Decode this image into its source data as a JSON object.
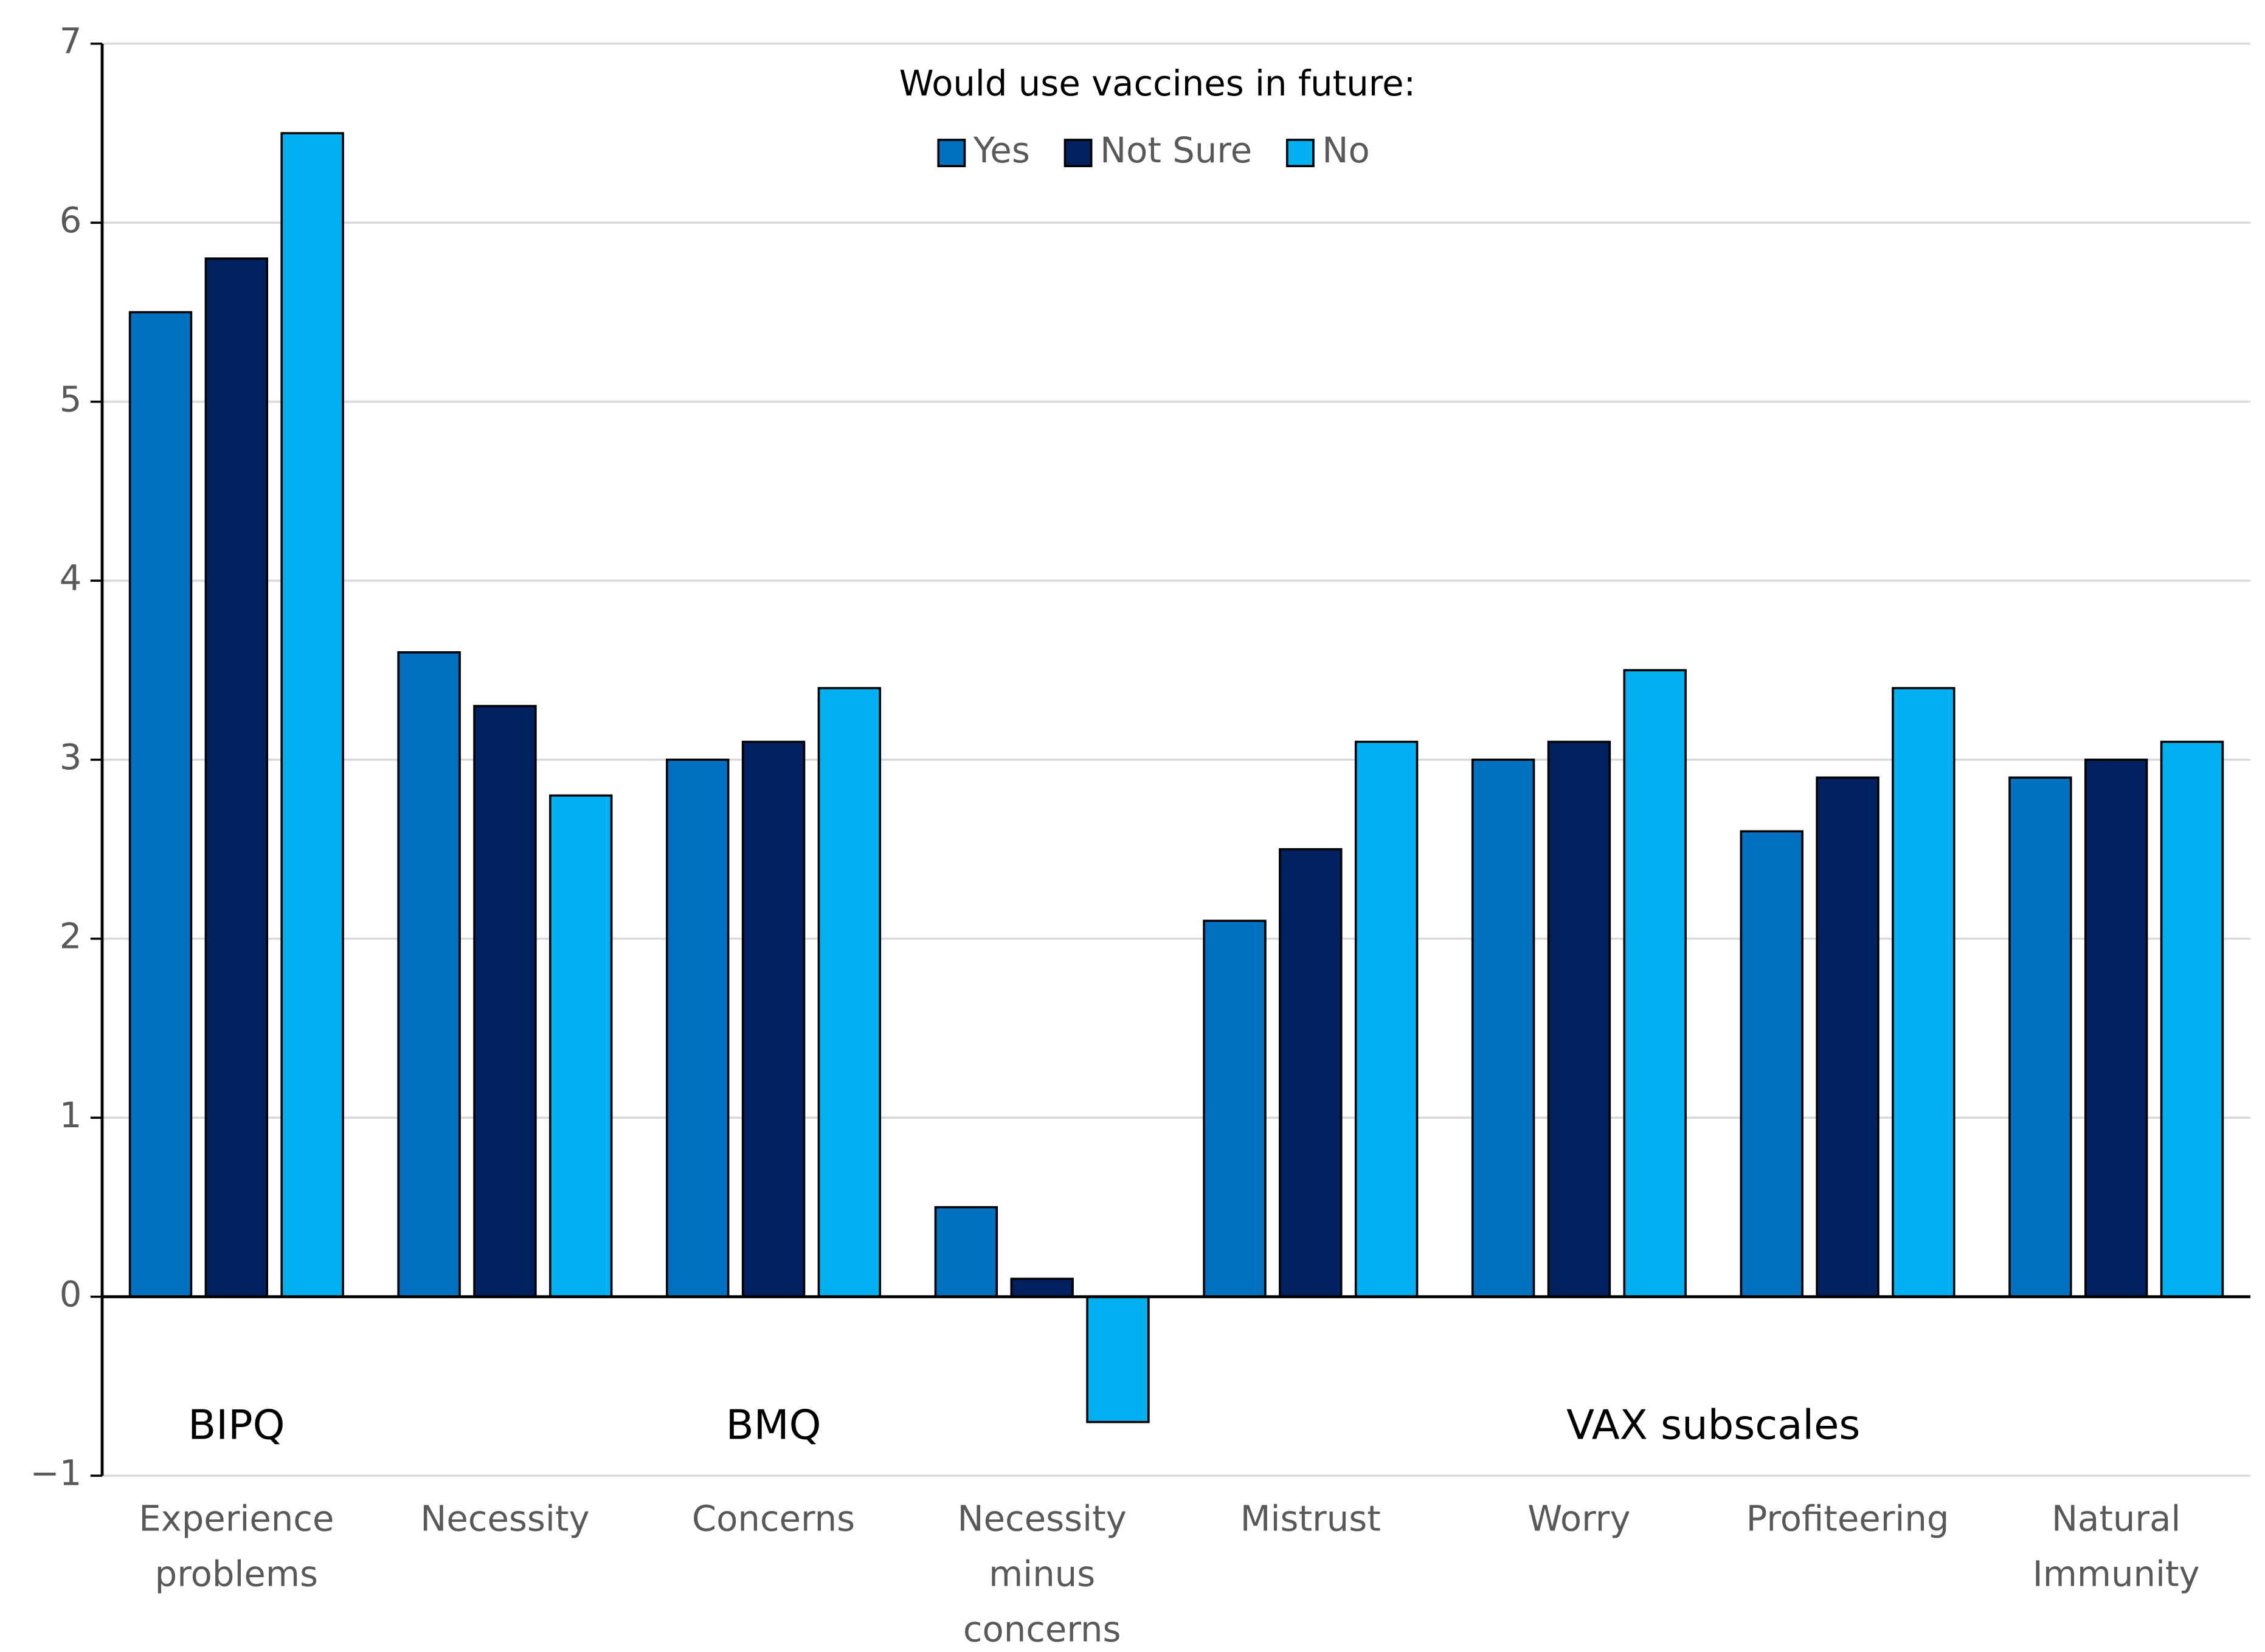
{
  "chart_data": {
    "type": "bar",
    "legend_title": "Would use vaccines in future:",
    "categories": [
      "Experience problems",
      "Necessity",
      "Concerns",
      "Necessity minus concerns",
      "Mistrust",
      "Worry",
      "Profiteering",
      "Natural Immunity"
    ],
    "series": [
      {
        "name": "Yes",
        "color": "#0070c0",
        "values": [
          5.5,
          3.6,
          3.0,
          0.5,
          2.1,
          3.0,
          2.6,
          2.9
        ]
      },
      {
        "name": "Not Sure",
        "color": "#002060",
        "values": [
          5.8,
          3.3,
          3.1,
          0.1,
          2.5,
          3.1,
          2.9,
          3.0
        ]
      },
      {
        "name": "No",
        "color": "#00b0f0",
        "values": [
          6.5,
          2.8,
          3.4,
          -0.7,
          3.1,
          3.5,
          3.4,
          3.1
        ]
      }
    ],
    "annotations": [
      "BIPQ",
      "BMQ",
      "VAX subscales"
    ],
    "ylim": [
      -1,
      7
    ],
    "yticks": [
      {
        "value": -1,
        "label": "−1"
      },
      0,
      1,
      2,
      3,
      4,
      5,
      6,
      7
    ],
    "grid": true
  }
}
